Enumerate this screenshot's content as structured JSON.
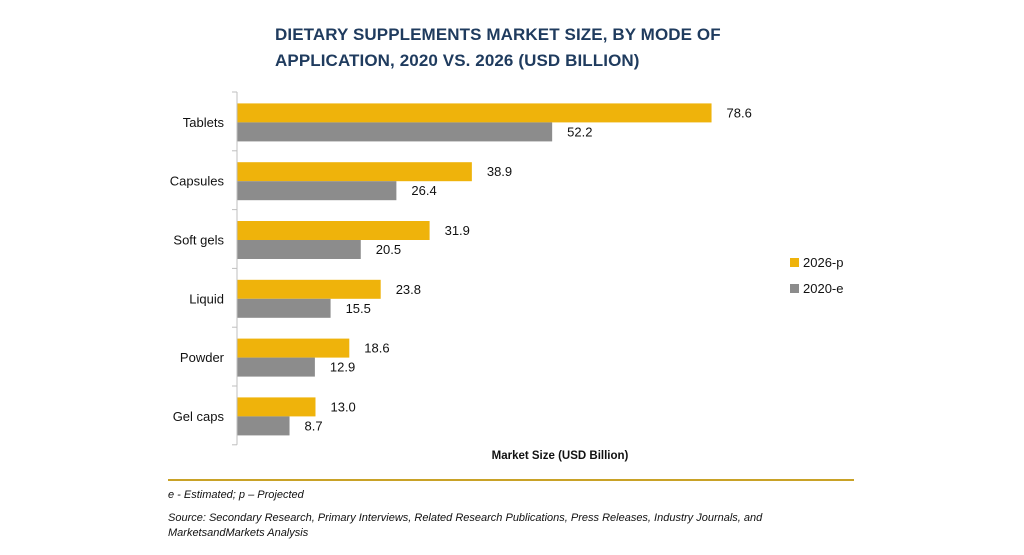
{
  "chart_data": {
    "type": "bar",
    "orientation": "horizontal",
    "title": "DIETARY SUPPLEMENTS MARKET SIZE, BY MODE OF APPLICATION, 2020 VS. 2026 (USD BILLION)",
    "xlabel": "Market Size (USD Billion)",
    "ylabel": "",
    "categories": [
      "Tablets",
      "Capsules",
      "Soft gels",
      "Liquid",
      "Powder",
      "Gel caps"
    ],
    "series": [
      {
        "name": "2026-p",
        "color": "#efb30b",
        "values": [
          78.6,
          38.9,
          31.9,
          23.8,
          18.6,
          13.0
        ],
        "labels": [
          "78.6",
          "38.9",
          "31.9",
          "23.8",
          "18.6",
          "13.0"
        ]
      },
      {
        "name": "2020-e",
        "color": "#8c8c8c",
        "values": [
          52.2,
          26.4,
          20.5,
          15.5,
          12.9,
          8.7
        ],
        "labels": [
          "52.2",
          "26.4",
          "20.5",
          "15.5",
          "12.9",
          "8.7"
        ]
      }
    ],
    "xlim": [
      0,
      80
    ],
    "grid": false,
    "legend_position": "right"
  },
  "notes": {
    "footnote": "e - Estimated; p – Projected",
    "source": "Source: Secondary Research, Primary Interviews, Related Research Publications, Press Releases, Industry Journals, and MarketsandMarkets Analysis"
  }
}
